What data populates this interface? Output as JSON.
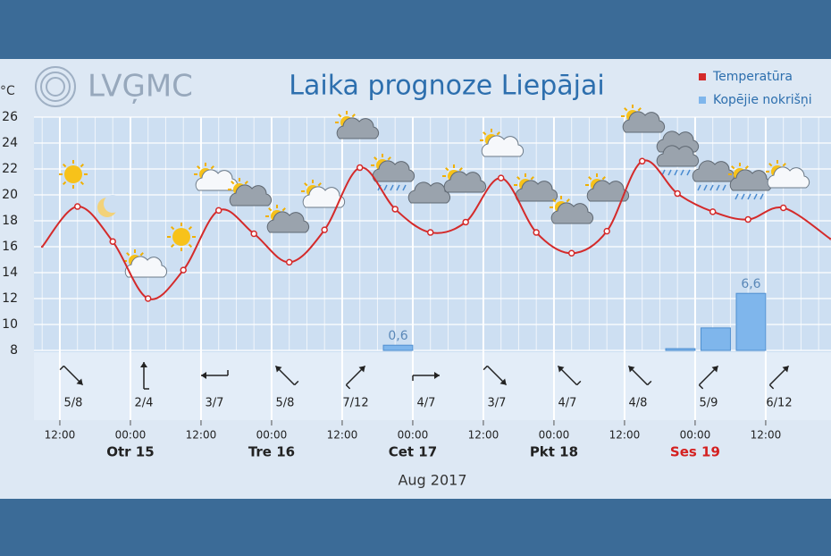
{
  "header": {
    "logo": "LVĢMC",
    "unit": "°C",
    "title": "Laika prognoze Liepājai"
  },
  "chart_data": {
    "type": "line",
    "title": "Laika prognoze Liepājai",
    "xlabel": "Aug 2017",
    "xlim": [
      -4.4,
      131.1
    ],
    "xticks": [
      {
        "value": 0,
        "label": "12:00"
      },
      {
        "value": 12,
        "label": "00:00"
      },
      {
        "value": 24,
        "label": "12:00"
      },
      {
        "value": 36,
        "label": "00:00"
      },
      {
        "value": 48,
        "label": "12:00"
      },
      {
        "value": 60,
        "label": "00:00"
      },
      {
        "value": 72,
        "label": "12:00"
      },
      {
        "value": 84,
        "label": "00:00"
      },
      {
        "value": 96,
        "label": "12:00"
      },
      {
        "value": 108,
        "label": "00:00"
      },
      {
        "value": 120,
        "label": "12:00"
      }
    ],
    "x_day_labels": [
      {
        "value": 12,
        "label": "Otr 15"
      },
      {
        "value": 36,
        "label": "Tre 16"
      },
      {
        "value": 60,
        "label": "Cet 17"
      },
      {
        "value": 84,
        "label": "Pkt 18"
      },
      {
        "value": 108,
        "label": "Ses 19",
        "color": "#d42020"
      }
    ],
    "ylim": [
      8,
      26
    ],
    "yticks": [
      8,
      10,
      12,
      14,
      16,
      18,
      20,
      22,
      24,
      26
    ],
    "y2lim": [
      0,
      27
    ],
    "grid": true,
    "legend": "top-right",
    "series": [
      {
        "name": "Temperatūra",
        "color": "#d42a2a",
        "x": [
          -3,
          3,
          9,
          15,
          21,
          27,
          33,
          39,
          45,
          51,
          57,
          63,
          69,
          75,
          81,
          87,
          93,
          99,
          105,
          111,
          117,
          123,
          131
        ],
        "values": [
          16.0,
          19.1,
          16.4,
          12.0,
          14.2,
          18.8,
          17.0,
          14.8,
          17.3,
          22.1,
          18.9,
          17.1,
          17.9,
          21.3,
          17.1,
          15.5,
          17.2,
          22.6,
          20.1,
          18.7,
          18.1,
          19.0,
          16.6
        ]
      },
      {
        "name": "Kopējie nokrišņi",
        "color": "#7fb6ec",
        "type": "bar",
        "axis": "y2",
        "x": [
          55,
          103,
          109,
          115
        ],
        "values": [
          0.6,
          0.2,
          2.6,
          6.6
        ],
        "value_labels": [
          "0,6",
          null,
          null,
          "6,6"
        ]
      }
    ],
    "wind_labels": [
      "5/8",
      "2/4",
      "3/7",
      "5/8",
      "7/12",
      "4/7",
      "3/7",
      "4/7",
      "4/8",
      "5/9",
      "6/12"
    ]
  }
}
